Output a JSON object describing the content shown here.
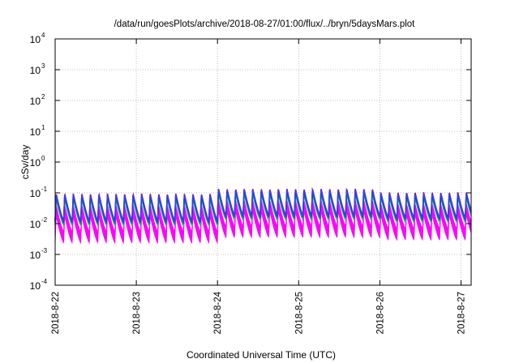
{
  "chart_data": {
    "type": "line",
    "title": "/data/run/goesPlots/archive/2018-08-27/01:00/flux/../bryn/5daysMars.plot",
    "xlabel": "Coordinated Universal Time (UTC)",
    "ylabel": "cSv/day",
    "y_scale": "log",
    "ylim": [
      0.0001,
      10000
    ],
    "y_ticks": [
      {
        "exp": "-4"
      },
      {
        "exp": "-3"
      },
      {
        "exp": "-2"
      },
      {
        "exp": "-1"
      },
      {
        "exp": "0"
      },
      {
        "exp": "1"
      },
      {
        "exp": "2"
      },
      {
        "exp": "3"
      },
      {
        "exp": "4"
      }
    ],
    "y_tick_base": "10",
    "x_range": [
      "2018-08-22T00:00",
      "2018-08-27T03:00"
    ],
    "x_ticks": [
      "2018-8-22",
      "2018-8-23",
      "2018-8-24",
      "2018-8-25",
      "2018-8-26",
      "2018-8-27"
    ],
    "grid": true,
    "legend": "none",
    "sawtooth": {
      "cycles_per_day": 9.5,
      "segments": [
        {
          "from": "2018-08-22",
          "to": "2018-08-24",
          "peak": 0.09,
          "trough": 0.012
        },
        {
          "from": "2018-08-24",
          "to": "2018-08-26",
          "peak": 0.13,
          "trough": 0.018
        },
        {
          "from": "2018-08-26",
          "to": "2018-08-27T03:00",
          "peak": 0.1,
          "trough": 0.015
        }
      ]
    },
    "series": [
      {
        "color": "#ff00ff",
        "scale": 0.45,
        "lower_scale": 0.2
      },
      {
        "color": "#00bfbf",
        "scale": 0.75
      },
      {
        "color": "#ff0000",
        "scale": 1.05
      },
      {
        "color": "#008000",
        "scale": 0.9
      },
      {
        "color": "#2a3fff",
        "scale": 1.0
      }
    ]
  }
}
